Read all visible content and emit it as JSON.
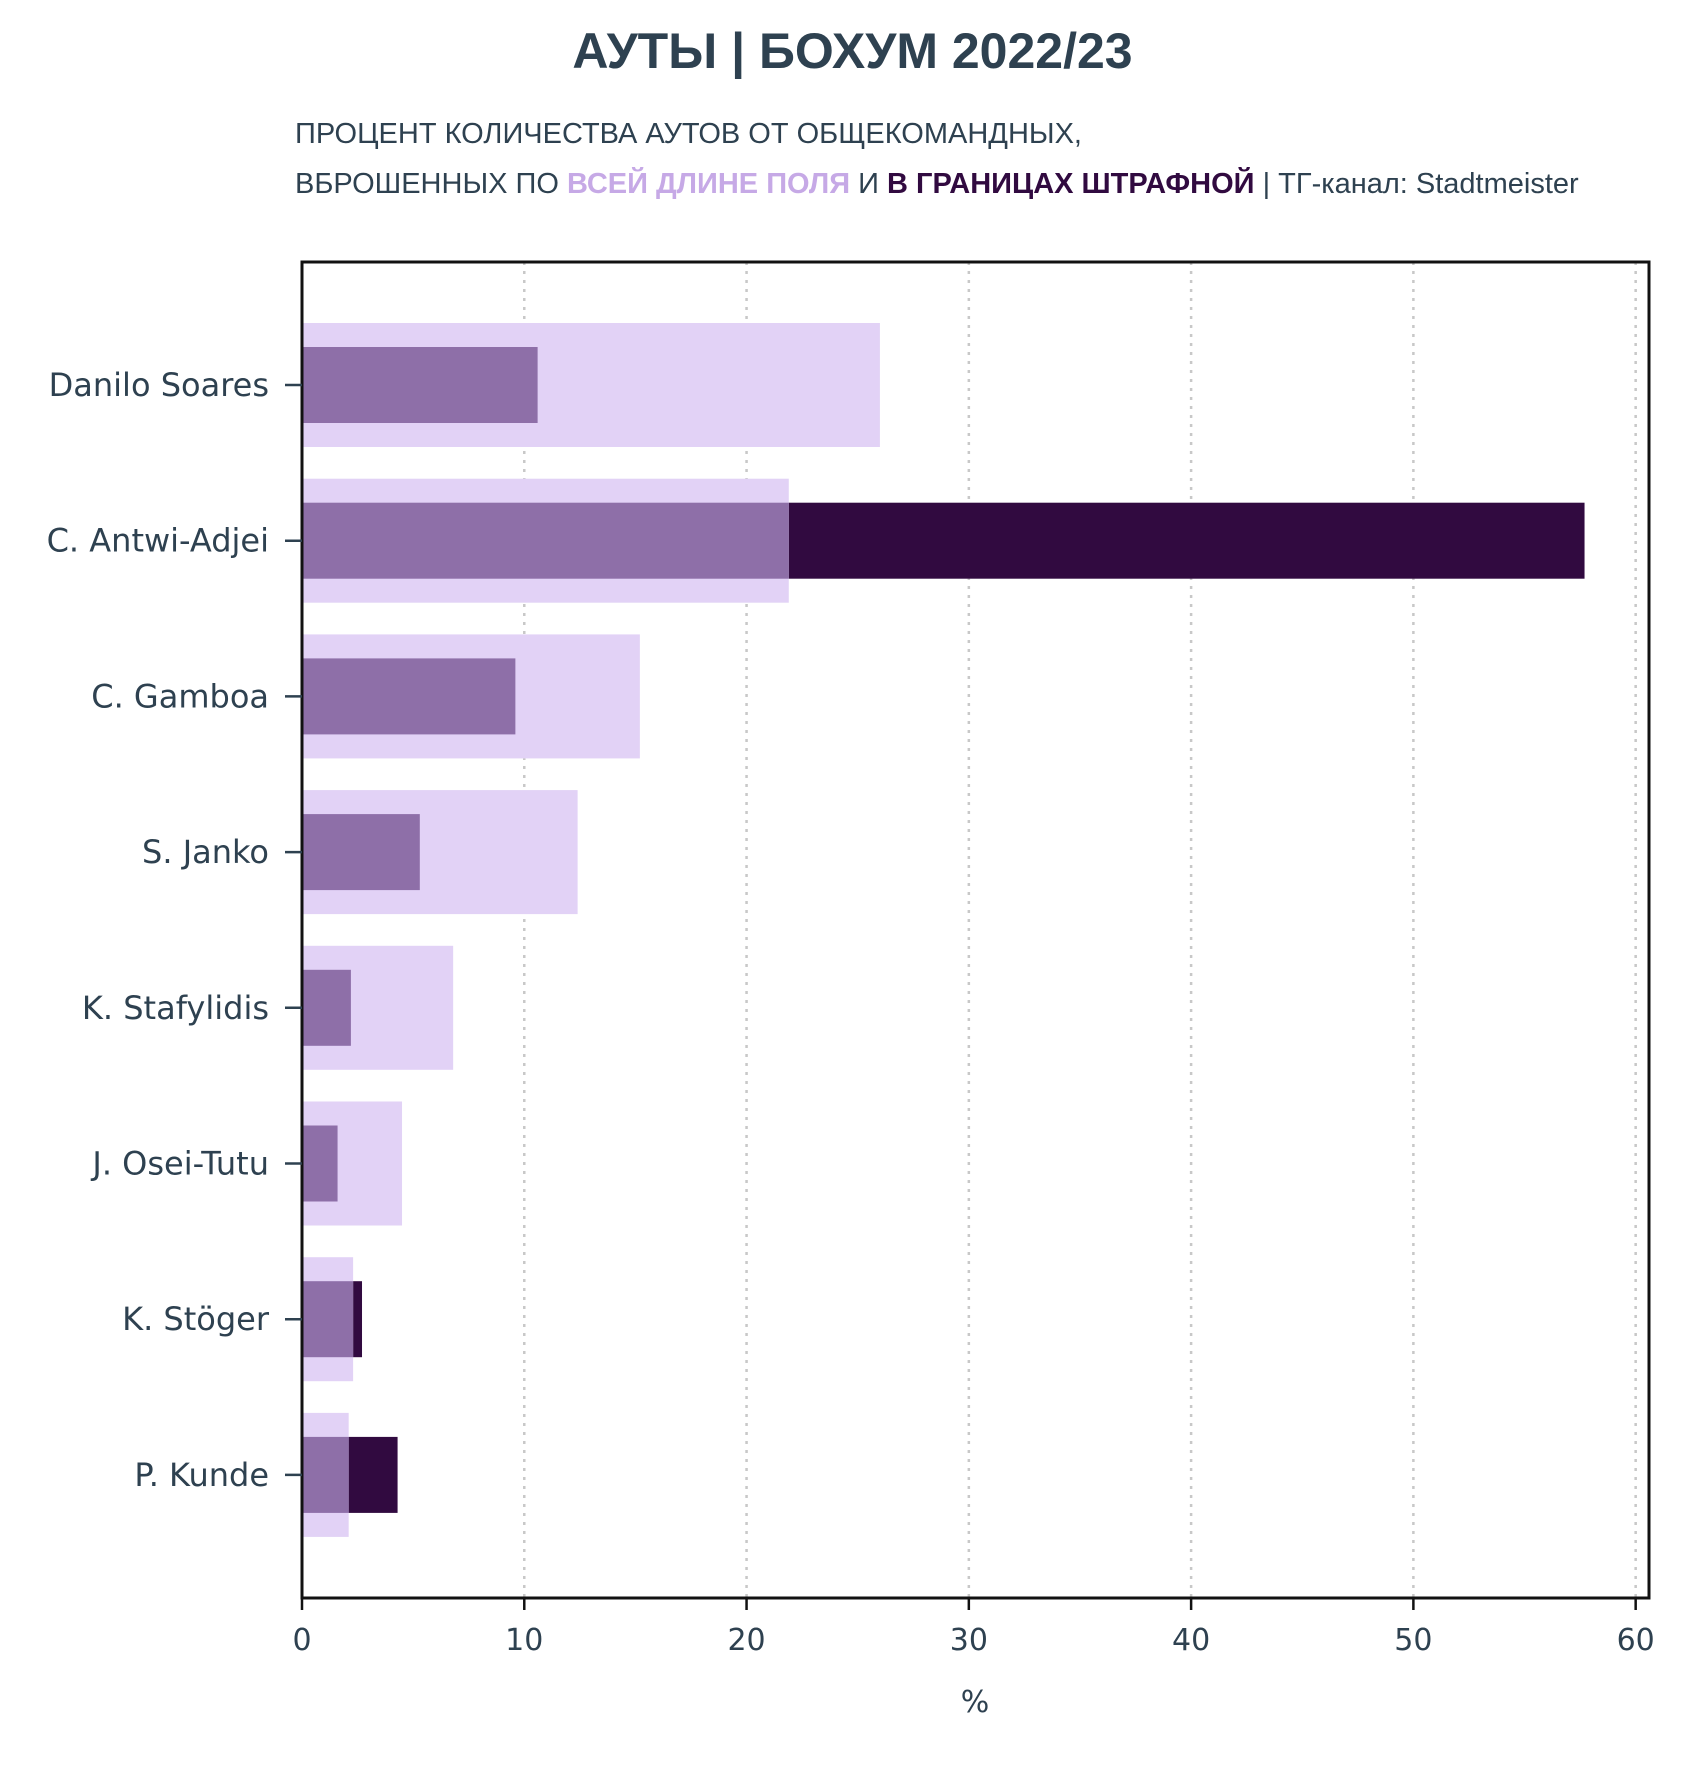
{
  "title": "АУТЫ | БОХУМ 2022/23",
  "subtitle": {
    "line1": "ПРОЦЕНТ КОЛИЧЕСТВА АУТОВ ОТ ОБЩЕКОМАНДНЫХ,",
    "line2_prefix": "ВБРОШЕННЫХ ПО ",
    "highlight_full": "ВСЕЙ ДЛИНЕ ПОЛЯ",
    "connector": " И ",
    "highlight_box": "В ГРАНИЦАХ ШТРАФНОЙ",
    "separator": " | ",
    "credit": "ТГ-канал: Stadtmeister"
  },
  "colors": {
    "full_field": "#e2d2f6",
    "overlap": "#8e6fa8",
    "penalty_box": "#310a40",
    "text": "#2e4150",
    "grid": "#c8c8c8"
  },
  "chart_data": {
    "type": "bar",
    "orientation": "horizontal",
    "categories": [
      "Danilo Soares",
      "C. Antwi-Adjei",
      "C. Gamboa",
      "S. Janko",
      "K. Stafylidis",
      "J. Osei-Tutu",
      "K. Stöger",
      "P. Kunde"
    ],
    "series": [
      {
        "name": "ВСЕЙ ДЛИНЕ ПОЛЯ",
        "values": [
          26.0,
          21.9,
          15.2,
          12.4,
          6.8,
          4.5,
          2.3,
          2.1
        ]
      },
      {
        "name": "В ГРАНИЦАХ ШТРАФНОЙ",
        "values": [
          10.6,
          57.7,
          9.6,
          5.3,
          2.2,
          1.6,
          2.7,
          4.3
        ]
      }
    ],
    "xlabel": "%",
    "xlim": [
      0,
      60.6
    ],
    "xticks": [
      "0",
      "10",
      "20",
      "30",
      "40",
      "50",
      "60"
    ],
    "grid": "vertical dotted"
  }
}
